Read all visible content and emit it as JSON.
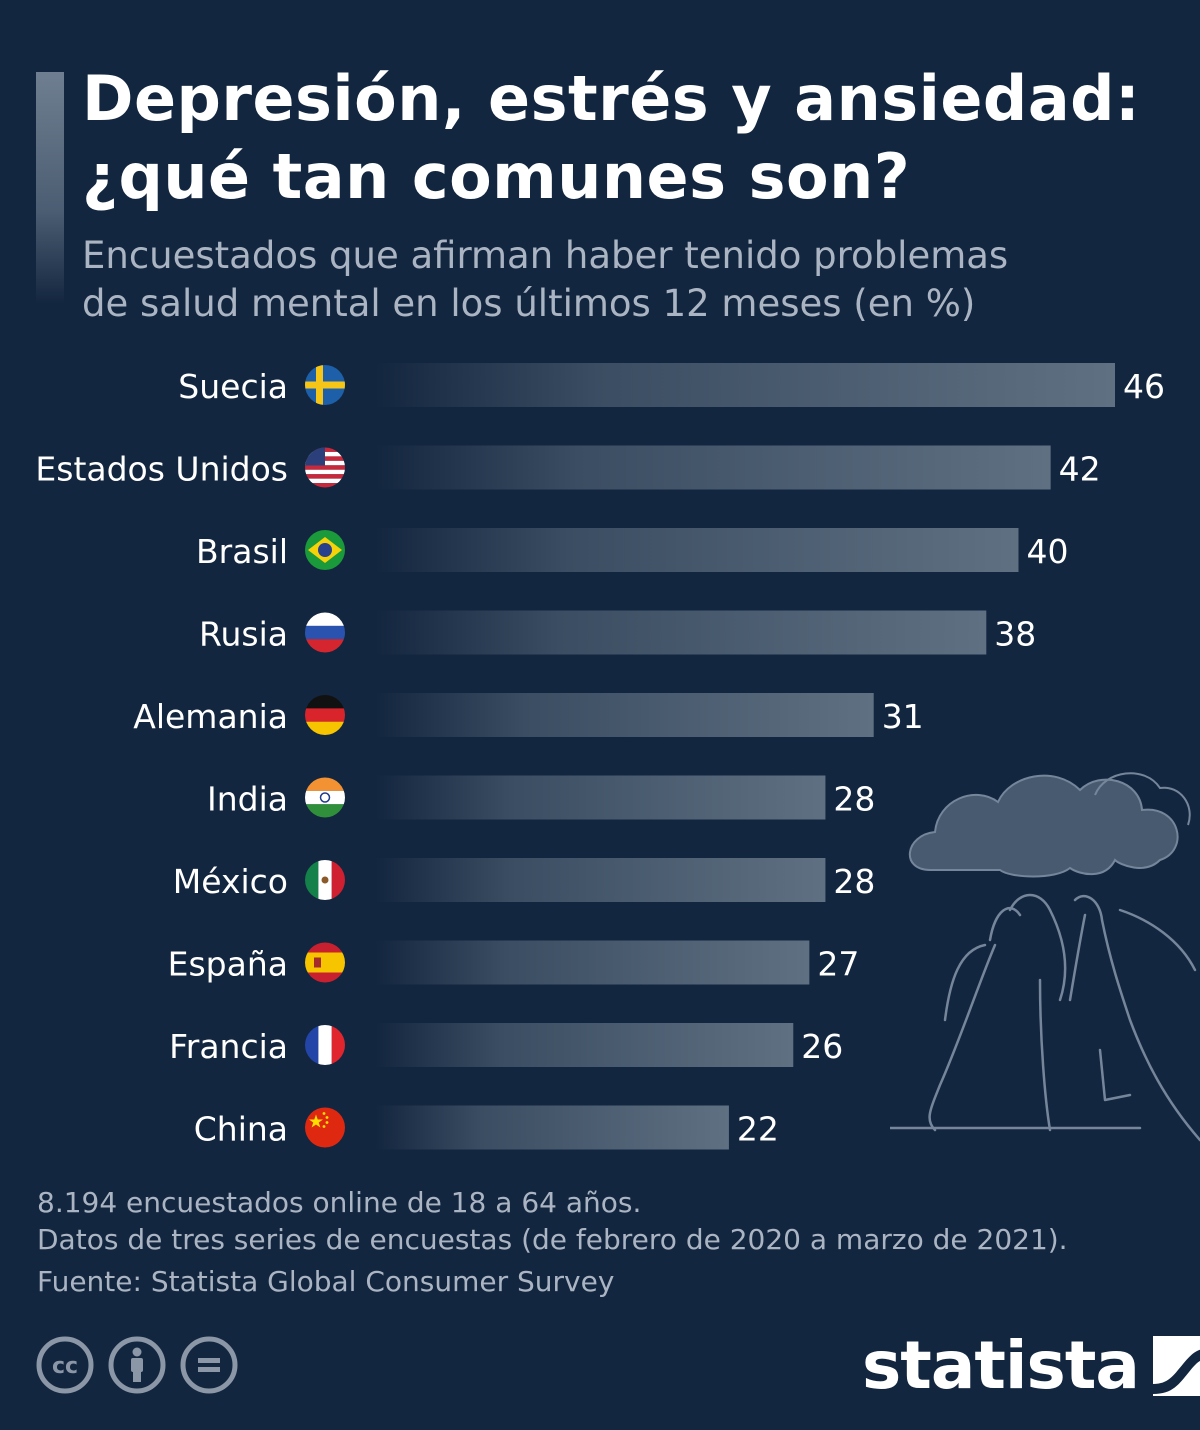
{
  "header": {
    "title_line1": "Depresión, estrés y ansiedad:",
    "title_line2": "¿qué tan comunes son?",
    "subtitle_line1": "Encuestados que afirman haber tenido problemas",
    "subtitle_line2": "de salud mental en los últimos 12 meses (en %)"
  },
  "chart_data": {
    "type": "bar",
    "orientation": "horizontal",
    "title": "Depresión, estrés y ansiedad: ¿qué tan comunes son?",
    "subtitle": "Encuestados que afirman haber tenido problemas de salud mental en los últimos 12 meses (en %)",
    "categories": [
      "Suecia",
      "Estados Unidos",
      "Brasil",
      "Rusia",
      "Alemania",
      "India",
      "México",
      "España",
      "Francia",
      "China"
    ],
    "values": [
      46,
      42,
      40,
      38,
      31,
      28,
      28,
      27,
      26,
      22
    ],
    "flags": [
      "sweden-flag-icon",
      "usa-flag-icon",
      "brazil-flag-icon",
      "russia-flag-icon",
      "germany-flag-icon",
      "india-flag-icon",
      "mexico-flag-icon",
      "spain-flag-icon",
      "france-flag-icon",
      "china-flag-icon"
    ],
    "xlim": [
      0,
      46
    ],
    "grid": false,
    "bar_color": "#5d6e80",
    "background": "#13263f"
  },
  "footer": {
    "note1": "8.194 encuestados online de 18 a 64 años.",
    "note2": "Datos de tres series de encuestas (de febrero de 2020 a marzo de 2021).",
    "source": "Fuente: Statista Global Consumer Survey",
    "brand": "statista",
    "license_icons": [
      "cc-icon",
      "attribution-icon",
      "no-derivatives-icon"
    ]
  }
}
